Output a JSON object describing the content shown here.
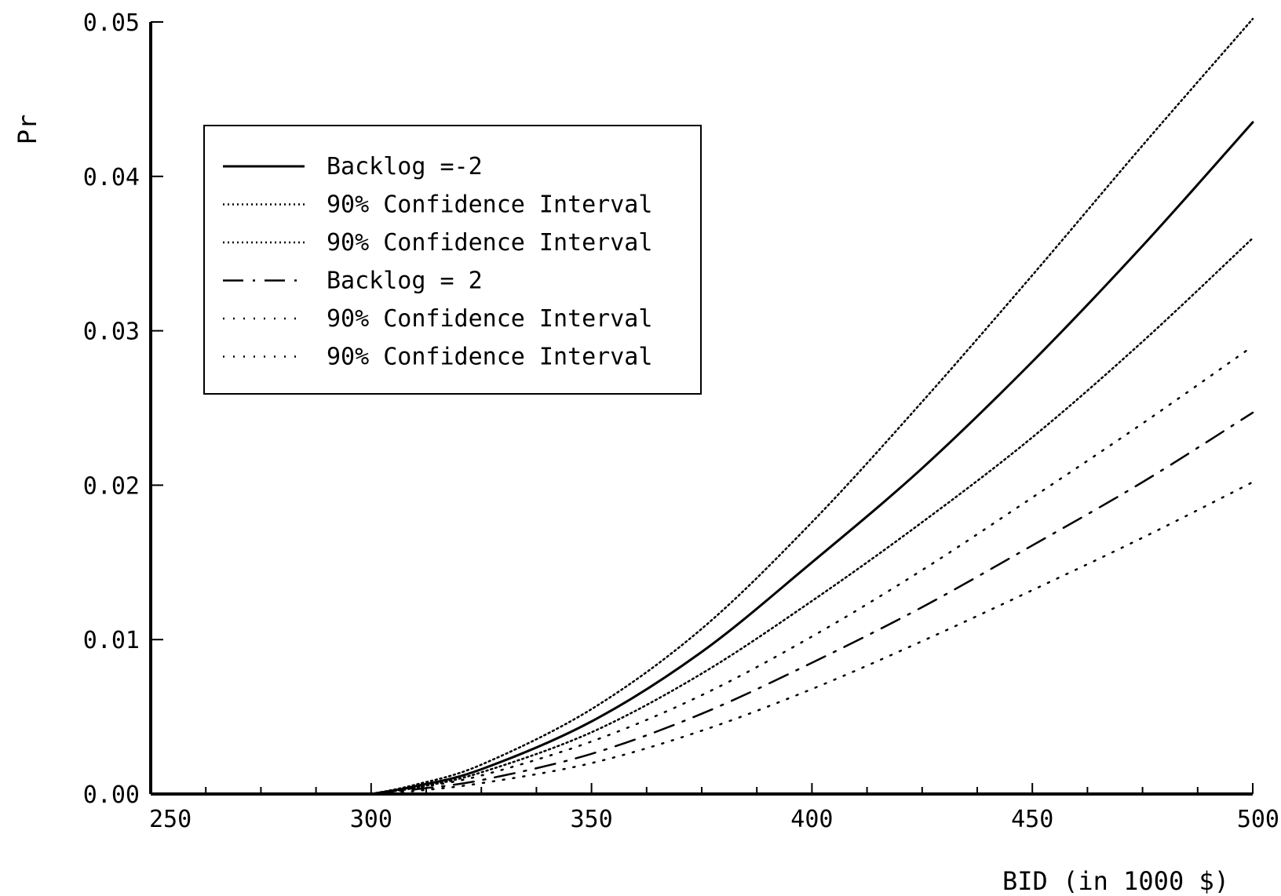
{
  "chart_data": {
    "type": "line",
    "title": "",
    "xlabel": "BID (in  1000 $)",
    "ylabel": "Pr",
    "xlim": [
      250,
      500
    ],
    "ylim": [
      0.0,
      0.05
    ],
    "xticks": [
      250,
      300,
      350,
      400,
      450,
      500
    ],
    "xtick_labels": [
      "250",
      "300",
      "350",
      "400",
      "450",
      "500"
    ],
    "yticks": [
      0.0,
      0.01,
      0.02,
      0.03,
      0.04,
      0.05
    ],
    "ytick_labels": [
      "0.00",
      "0.01",
      "0.02",
      "0.03",
      "0.04",
      "0.05"
    ],
    "grid": false,
    "legend_position": "upper-left",
    "x": [
      300,
      310,
      325,
      350,
      375,
      400,
      425,
      450,
      475,
      500
    ],
    "series": [
      {
        "name": "Backlog =-2",
        "style": "solid",
        "values": [
          0.0,
          0.0005,
          0.0016,
          0.0047,
          0.0092,
          0.015,
          0.0211,
          0.028,
          0.0355,
          0.0435
        ]
      },
      {
        "name": "90% Confidence Interval",
        "style": "dotted-dense",
        "values": [
          0.0,
          0.0006,
          0.0019,
          0.0055,
          0.0107,
          0.0176,
          0.0254,
          0.0336,
          0.042,
          0.0502
        ]
      },
      {
        "name": "90% Confidence Interval",
        "style": "dotted-dense",
        "values": [
          0.0,
          0.0004,
          0.0014,
          0.004,
          0.0078,
          0.0125,
          0.0176,
          0.0231,
          0.0293,
          0.036
        ]
      },
      {
        "name": "Backlog = 2",
        "style": "dash-dot",
        "values": [
          0.0,
          0.0003,
          0.0009,
          0.0026,
          0.0052,
          0.0085,
          0.0121,
          0.0161,
          0.0202,
          0.0247
        ]
      },
      {
        "name": "90% Confidence Interval",
        "style": "dotted-sparse",
        "values": [
          0.0,
          0.0004,
          0.0012,
          0.0034,
          0.0064,
          0.0102,
          0.0145,
          0.0192,
          0.024,
          0.029
        ]
      },
      {
        "name": "90% Confidence Interval",
        "style": "dotted-sparse",
        "values": [
          0.0,
          0.0002,
          0.0007,
          0.002,
          0.0041,
          0.0068,
          0.0099,
          0.0132,
          0.0166,
          0.0202
        ]
      }
    ]
  }
}
